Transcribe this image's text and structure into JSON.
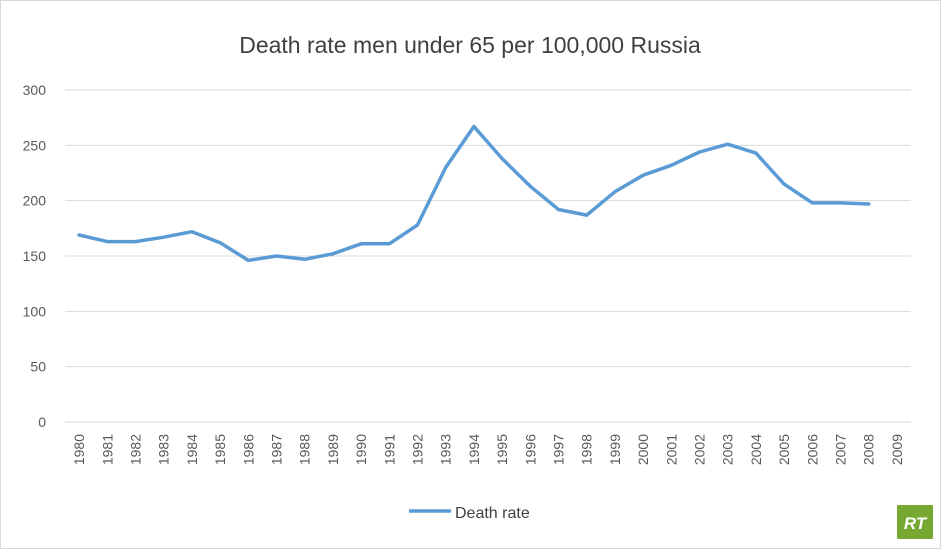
{
  "chart_data": {
    "type": "line",
    "title": "Death rate men under 65 per 100,000 Russia",
    "xlabel": "",
    "ylabel": "",
    "categories": [
      "1980",
      "1981",
      "1982",
      "1983",
      "1984",
      "1985",
      "1986",
      "1987",
      "1988",
      "1989",
      "1990",
      "1991",
      "1992",
      "1993",
      "1994",
      "1995",
      "1996",
      "1997",
      "1998",
      "1999",
      "2000",
      "2001",
      "2002",
      "2003",
      "2004",
      "2005",
      "2006",
      "2007",
      "2008",
      "2009"
    ],
    "series": [
      {
        "name": "Death rate",
        "color": "#5b9bd5",
        "values": [
          169,
          163,
          163,
          167,
          172,
          162,
          146,
          150,
          147,
          152,
          161,
          161,
          178,
          230,
          267,
          238,
          213,
          192,
          187,
          208,
          223,
          232,
          244,
          251,
          243,
          215,
          198,
          198,
          197,
          null
        ]
      }
    ],
    "ylim": [
      0,
      300
    ],
    "yticks": [
      "0",
      "50",
      "100",
      "150",
      "200",
      "250",
      "300"
    ],
    "grid": true,
    "legend_position": "bottom"
  },
  "logo": {
    "text": "RT",
    "color": "#77a932"
  }
}
